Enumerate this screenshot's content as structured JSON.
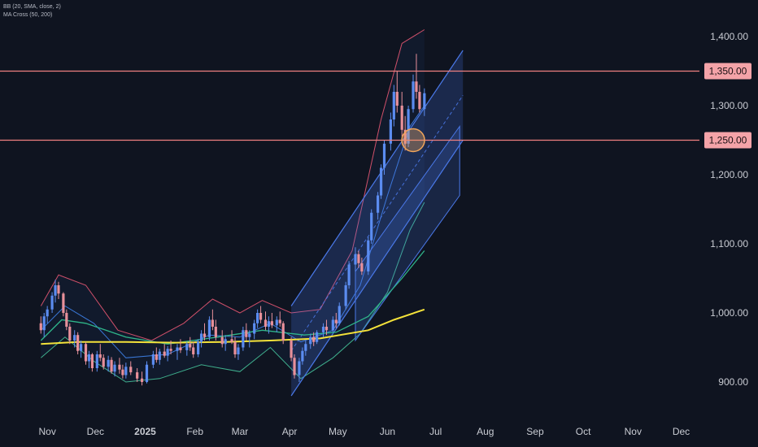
{
  "legend": {
    "bb": "BB (20, SMA, close, 2)",
    "ma_cross": "MA Cross (50, 200)"
  },
  "colors": {
    "background": "#0f1420",
    "up_candle": "#5b8cf0",
    "down_candle": "#e8909a",
    "level_line": "#f08080",
    "level_tag": "#f4a3a8",
    "bb_band": "#d0506a",
    "bb_basis": "#3a78d8",
    "bb_lower": "#3fae8c",
    "ma50": "#2fb58a",
    "ma200": "#f4e23a",
    "channel": "#4a78e8",
    "circle": "#f2a65a"
  },
  "chart_data": {
    "type": "candlestick",
    "title": "",
    "x_axis": {
      "labels": [
        "Nov",
        "Dec",
        "2025",
        "Feb",
        "Mar",
        "Apr",
        "May",
        "Jun",
        "Jul",
        "Aug",
        "Sep",
        "Oct",
        "Nov",
        "Dec"
      ],
      "bold": [
        "2025"
      ]
    },
    "y_axis": {
      "ticks": [
        "1,400.00",
        "1,300.00",
        "1,200.00",
        "1,100.00",
        "1,000.00",
        "900.00"
      ],
      "tick_values": [
        1400,
        1300,
        1200,
        1100,
        1000,
        900
      ],
      "range": [
        860,
        1460
      ]
    },
    "levels": [
      {
        "value": 1350,
        "label": "1,350.00"
      },
      {
        "value": 1250,
        "label": "1,250.00"
      }
    ],
    "candles": [
      [
        "2024-10-28",
        985,
        995,
        970,
        975
      ],
      [
        "2024-10-30",
        975,
        1000,
        965,
        995
      ],
      [
        "2024-11-01",
        995,
        1010,
        985,
        1005
      ],
      [
        "2024-11-04",
        1005,
        1030,
        1000,
        1025
      ],
      [
        "2024-11-06",
        1025,
        1048,
        1015,
        1040
      ],
      [
        "2024-11-08",
        1040,
        1045,
        1020,
        1028
      ],
      [
        "2024-11-11",
        1028,
        1030,
        995,
        1000
      ],
      [
        "2024-11-13",
        1000,
        1005,
        975,
        980
      ],
      [
        "2024-11-15",
        980,
        985,
        955,
        960
      ],
      [
        "2024-11-18",
        960,
        975,
        950,
        968
      ],
      [
        "2024-11-20",
        968,
        972,
        940,
        945
      ],
      [
        "2024-11-22",
        945,
        960,
        935,
        955
      ],
      [
        "2024-11-25",
        955,
        958,
        925,
        930
      ],
      [
        "2024-11-27",
        930,
        945,
        920,
        940
      ],
      [
        "2024-11-29",
        940,
        942,
        915,
        920
      ],
      [
        "2024-12-02",
        920,
        945,
        915,
        940
      ],
      [
        "2024-12-04",
        940,
        955,
        930,
        935
      ],
      [
        "2024-12-06",
        935,
        940,
        918,
        922
      ],
      [
        "2024-12-09",
        922,
        938,
        915,
        932
      ],
      [
        "2024-12-11",
        932,
        936,
        912,
        915
      ],
      [
        "2024-12-13",
        915,
        930,
        908,
        925
      ],
      [
        "2024-12-16",
        925,
        935,
        912,
        918
      ],
      [
        "2024-12-18",
        918,
        925,
        905,
        910
      ],
      [
        "2024-12-20",
        910,
        928,
        905,
        922
      ],
      [
        "2024-12-23",
        922,
        930,
        910,
        914
      ],
      [
        "2024-12-27",
        914,
        920,
        900,
        905
      ],
      [
        "2024-12-30",
        905,
        915,
        895,
        900
      ],
      [
        "2025-01-02",
        900,
        930,
        898,
        925
      ],
      [
        "2025-01-06",
        925,
        945,
        920,
        940
      ],
      [
        "2025-01-08",
        940,
        950,
        928,
        932
      ],
      [
        "2025-01-10",
        932,
        948,
        925,
        944
      ],
      [
        "2025-01-13",
        944,
        955,
        935,
        938
      ],
      [
        "2025-01-15",
        938,
        952,
        930,
        948
      ],
      [
        "2025-01-17",
        948,
        960,
        940,
        945
      ],
      [
        "2025-01-21",
        945,
        955,
        932,
        950
      ],
      [
        "2025-01-23",
        950,
        962,
        942,
        946
      ],
      [
        "2025-01-27",
        946,
        958,
        938,
        955
      ],
      [
        "2025-01-29",
        955,
        965,
        945,
        950
      ],
      [
        "2025-01-31",
        950,
        958,
        935,
        940
      ],
      [
        "2025-02-03",
        940,
        962,
        936,
        958
      ],
      [
        "2025-02-05",
        958,
        975,
        950,
        970
      ],
      [
        "2025-02-07",
        970,
        985,
        960,
        965
      ],
      [
        "2025-02-10",
        965,
        995,
        960,
        990
      ],
      [
        "2025-02-12",
        990,
        1005,
        975,
        980
      ],
      [
        "2025-02-14",
        980,
        990,
        960,
        965
      ],
      [
        "2025-02-18",
        965,
        975,
        950,
        955
      ],
      [
        "2025-02-20",
        955,
        968,
        945,
        962
      ],
      [
        "2025-02-24",
        962,
        975,
        955,
        958
      ],
      [
        "2025-02-26",
        958,
        965,
        935,
        940
      ],
      [
        "2025-02-28",
        940,
        955,
        932,
        950
      ],
      [
        "2025-03-03",
        950,
        980,
        945,
        975
      ],
      [
        "2025-03-05",
        975,
        985,
        960,
        965
      ],
      [
        "2025-03-07",
        965,
        975,
        950,
        970
      ],
      [
        "2025-03-10",
        970,
        990,
        962,
        985
      ],
      [
        "2025-03-12",
        985,
        1005,
        978,
        1000
      ],
      [
        "2025-03-14",
        1000,
        1010,
        985,
        990
      ],
      [
        "2025-03-17",
        990,
        1002,
        975,
        980
      ],
      [
        "2025-03-19",
        980,
        995,
        970,
        988
      ],
      [
        "2025-03-21",
        988,
        1000,
        978,
        982
      ],
      [
        "2025-03-24",
        982,
        995,
        972,
        990
      ],
      [
        "2025-03-26",
        990,
        1002,
        980,
        985
      ],
      [
        "2025-03-28",
        985,
        988,
        955,
        960
      ],
      [
        "2025-04-02",
        960,
        965,
        930,
        935
      ],
      [
        "2025-04-04",
        935,
        940,
        905,
        910
      ],
      [
        "2025-04-07",
        910,
        935,
        900,
        930
      ],
      [
        "2025-04-09",
        930,
        950,
        925,
        945
      ],
      [
        "2025-04-11",
        945,
        960,
        938,
        955
      ],
      [
        "2025-04-14",
        955,
        970,
        948,
        965
      ],
      [
        "2025-04-16",
        965,
        972,
        952,
        958
      ],
      [
        "2025-04-18",
        958,
        975,
        955,
        972
      ],
      [
        "2025-04-22",
        972,
        985,
        965,
        980
      ],
      [
        "2025-04-24",
        980,
        990,
        968,
        975
      ],
      [
        "2025-04-28",
        975,
        995,
        972,
        990
      ],
      [
        "2025-04-30",
        990,
        1000,
        978,
        985
      ],
      [
        "2025-05-02",
        985,
        1015,
        982,
        1010
      ],
      [
        "2025-05-06",
        1010,
        1045,
        1005,
        1040
      ],
      [
        "2025-05-08",
        1040,
        1075,
        1035,
        1070
      ],
      [
        "2025-05-12",
        1070,
        1095,
        1060,
        1085
      ],
      [
        "2025-05-14",
        1085,
        1090,
        1065,
        1072
      ],
      [
        "2025-05-16",
        1072,
        1080,
        1055,
        1060
      ],
      [
        "2025-05-20",
        1060,
        1110,
        1055,
        1105
      ],
      [
        "2025-05-22",
        1105,
        1150,
        1100,
        1145
      ],
      [
        "2025-05-26",
        1145,
        1175,
        1135,
        1170
      ],
      [
        "2025-05-28",
        1170,
        1215,
        1165,
        1210
      ],
      [
        "2025-05-30",
        1210,
        1250,
        1200,
        1245
      ],
      [
        "2025-06-03",
        1245,
        1290,
        1235,
        1280
      ],
      [
        "2025-06-05",
        1280,
        1330,
        1270,
        1320
      ],
      [
        "2025-06-07",
        1320,
        1350,
        1290,
        1300
      ],
      [
        "2025-06-10",
        1300,
        1320,
        1255,
        1265
      ],
      [
        "2025-06-12",
        1265,
        1285,
        1235,
        1245
      ],
      [
        "2025-06-14",
        1245,
        1300,
        1240,
        1295
      ],
      [
        "2025-06-17",
        1295,
        1345,
        1290,
        1335
      ],
      [
        "2025-06-19",
        1335,
        1375,
        1310,
        1320
      ],
      [
        "2025-06-21",
        1320,
        1330,
        1290,
        1295
      ],
      [
        "2025-06-24",
        1295,
        1325,
        1285,
        1318
      ]
    ],
    "moving_averages": {
      "ma200": [
        [
          "2024-10-28",
          955
        ],
        [
          "2024-11-20",
          958
        ],
        [
          "2024-12-20",
          958
        ],
        [
          "2025-01-20",
          957
        ],
        [
          "2025-02-20",
          958
        ],
        [
          "2025-03-20",
          960
        ],
        [
          "2025-04-20",
          963
        ],
        [
          "2025-05-20",
          975
        ],
        [
          "2025-06-05",
          990
        ],
        [
          "2025-06-24",
          1005
        ]
      ],
      "ma50": [
        [
          "2024-10-28",
          960
        ],
        [
          "2024-11-10",
          990
        ],
        [
          "2024-11-25",
          985
        ],
        [
          "2024-12-20",
          965
        ],
        [
          "2025-01-15",
          955
        ],
        [
          "2025-02-15",
          965
        ],
        [
          "2025-03-15",
          975
        ],
        [
          "2025-04-10",
          968
        ],
        [
          "2025-04-30",
          972
        ],
        [
          "2025-05-20",
          995
        ],
        [
          "2025-06-10",
          1050
        ],
        [
          "2025-06-24",
          1090
        ]
      ]
    },
    "bollinger": {
      "upper": [
        [
          "2024-10-28",
          1010
        ],
        [
          "2024-11-08",
          1055
        ],
        [
          "2024-11-25",
          1040
        ],
        [
          "2024-12-15",
          975
        ],
        [
          "2025-01-05",
          960
        ],
        [
          "2025-01-25",
          985
        ],
        [
          "2025-02-12",
          1020
        ],
        [
          "2025-03-01",
          1000
        ],
        [
          "2025-03-15",
          1018
        ],
        [
          "2025-04-02",
          1000
        ],
        [
          "2025-04-20",
          1005
        ],
        [
          "2025-05-10",
          1090
        ],
        [
          "2025-05-28",
          1280
        ],
        [
          "2025-06-10",
          1390
        ],
        [
          "2025-06-24",
          1410
        ]
      ],
      "basis": [
        [
          "2024-10-28",
          975
        ],
        [
          "2024-11-12",
          1010
        ],
        [
          "2024-11-30",
          985
        ],
        [
          "2024-12-20",
          935
        ],
        [
          "2025-01-15",
          940
        ],
        [
          "2025-02-10",
          968
        ],
        [
          "2025-03-01",
          965
        ],
        [
          "2025-03-20",
          985
        ],
        [
          "2025-04-08",
          958
        ],
        [
          "2025-04-28",
          975
        ],
        [
          "2025-05-15",
          1040
        ],
        [
          "2025-06-01",
          1170
        ],
        [
          "2025-06-15",
          1270
        ],
        [
          "2025-06-24",
          1300
        ]
      ],
      "lower": [
        [
          "2024-10-28",
          935
        ],
        [
          "2024-11-12",
          965
        ],
        [
          "2024-11-30",
          930
        ],
        [
          "2024-12-20",
          900
        ],
        [
          "2025-01-10",
          905
        ],
        [
          "2025-02-05",
          925
        ],
        [
          "2025-03-01",
          915
        ],
        [
          "2025-03-20",
          950
        ],
        [
          "2025-04-08",
          905
        ],
        [
          "2025-04-28",
          935
        ],
        [
          "2025-05-15",
          970
        ],
        [
          "2025-06-01",
          1030
        ],
        [
          "2025-06-15",
          1120
        ],
        [
          "2025-06-24",
          1160
        ]
      ]
    },
    "channel": {
      "upper": [
        [
          "2025-04-02",
          1010
        ],
        [
          "2025-07-18",
          1380
        ]
      ],
      "lower": [
        [
          "2025-04-02",
          880
        ],
        [
          "2025-07-18",
          1250
        ]
      ],
      "mid": [
        [
          "2025-04-02",
          945
        ],
        [
          "2025-07-18",
          1315
        ]
      ],
      "inner_upper": [
        [
          "2025-05-12",
          1060
        ],
        [
          "2025-07-16",
          1270
        ]
      ],
      "inner_lower": [
        [
          "2025-05-12",
          960
        ],
        [
          "2025-07-16",
          1170
        ]
      ]
    },
    "highlight_circle": {
      "date": "2025-06-17",
      "value": 1250
    }
  }
}
